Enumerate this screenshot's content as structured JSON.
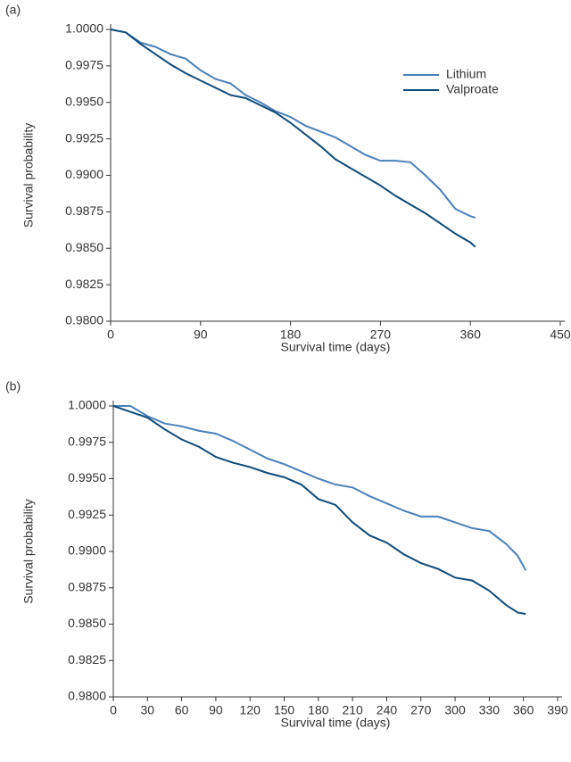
{
  "chart_data": [
    {
      "type": "line",
      "label": "(a)",
      "xlabel": "Survival time (days)",
      "ylabel": "Survival probability",
      "xlim": [
        0,
        450
      ],
      "xticks": [
        0,
        90,
        180,
        270,
        360,
        450
      ],
      "ylim": [
        0.98,
        1.0
      ],
      "yticks": [
        {
          "value": 1.0,
          "label": "1.0000"
        },
        {
          "value": 0.9975,
          "label": "0.9975"
        },
        {
          "value": 0.995,
          "label": "0.9950"
        },
        {
          "value": 0.9925,
          "label": "0.9925"
        },
        {
          "value": 0.99,
          "label": "0.9900"
        },
        {
          "value": 0.9875,
          "label": "0.9875"
        },
        {
          "value": 0.985,
          "label": "0.9850"
        },
        {
          "value": 0.9825,
          "label": "0.9825"
        },
        {
          "value": 0.98,
          "label": "0.9800"
        }
      ],
      "legend": "upper right",
      "x": [
        0,
        15,
        30,
        45,
        60,
        75,
        90,
        105,
        120,
        135,
        150,
        165,
        180,
        195,
        210,
        225,
        240,
        255,
        270,
        285,
        300,
        315,
        330,
        345,
        360,
        365
      ],
      "series": [
        {
          "name": "Lithium",
          "color": "#4a80b8",
          "values": [
            1.0,
            0.9998,
            0.9991,
            0.9988,
            0.9983,
            0.998,
            0.9972,
            0.9966,
            0.9963,
            0.9955,
            0.995,
            0.9944,
            0.994,
            0.9934,
            0.993,
            0.9926,
            0.992,
            0.9914,
            0.991,
            0.991,
            0.9909,
            0.99,
            0.989,
            0.9877,
            0.9872,
            0.9871
          ]
        },
        {
          "name": "Valproate",
          "color": "#0e4a78",
          "values": [
            1.0,
            0.9998,
            0.999,
            0.9983,
            0.9976,
            0.997,
            0.9965,
            0.996,
            0.9955,
            0.9953,
            0.9948,
            0.9943,
            0.9936,
            0.9928,
            0.992,
            0.9911,
            0.9905,
            0.9899,
            0.9893,
            0.9886,
            0.988,
            0.9874,
            0.9867,
            0.986,
            0.9854,
            0.9851
          ]
        }
      ]
    },
    {
      "type": "line",
      "label": "(b)",
      "xlabel": "Survival time (days)",
      "ylabel": "Survival probability",
      "xlim": [
        0,
        390
      ],
      "xticks": [
        0,
        30,
        60,
        90,
        120,
        150,
        180,
        210,
        240,
        270,
        300,
        330,
        360,
        390
      ],
      "ylim": [
        0.98,
        1.0
      ],
      "yticks": [
        {
          "value": 1.0,
          "label": "1.0000"
        },
        {
          "value": 0.9975,
          "label": "0.9975"
        },
        {
          "value": 0.995,
          "label": "0.9950"
        },
        {
          "value": 0.9925,
          "label": "0.9925"
        },
        {
          "value": 0.99,
          "label": "0.9900"
        },
        {
          "value": 0.9875,
          "label": "0.9875"
        },
        {
          "value": 0.985,
          "label": "0.9850"
        },
        {
          "value": 0.9825,
          "label": "0.9825"
        },
        {
          "value": 0.98,
          "label": "0.9800"
        }
      ],
      "x": [
        0,
        15,
        30,
        45,
        60,
        75,
        90,
        105,
        120,
        135,
        150,
        165,
        180,
        195,
        210,
        225,
        240,
        255,
        270,
        285,
        300,
        315,
        330,
        345,
        355,
        362
      ],
      "series": [
        {
          "color": "#4a80b8",
          "values": [
            1.0,
            1.0,
            0.9993,
            0.9988,
            0.9986,
            0.9983,
            0.9981,
            0.9976,
            0.997,
            0.9964,
            0.996,
            0.9955,
            0.995,
            0.9946,
            0.9944,
            0.9938,
            0.9933,
            0.9928,
            0.9924,
            0.9924,
            0.992,
            0.9916,
            0.9914,
            0.9905,
            0.9897,
            0.9887
          ]
        },
        {
          "color": "#0e4a78",
          "values": [
            1.0,
            0.9996,
            0.9992,
            0.9984,
            0.9977,
            0.9972,
            0.9965,
            0.9961,
            0.9958,
            0.9954,
            0.9951,
            0.9946,
            0.9936,
            0.9932,
            0.992,
            0.9911,
            0.9906,
            0.9898,
            0.9892,
            0.9888,
            0.9882,
            0.988,
            0.9873,
            0.9863,
            0.9858,
            0.9857
          ]
        }
      ]
    }
  ]
}
